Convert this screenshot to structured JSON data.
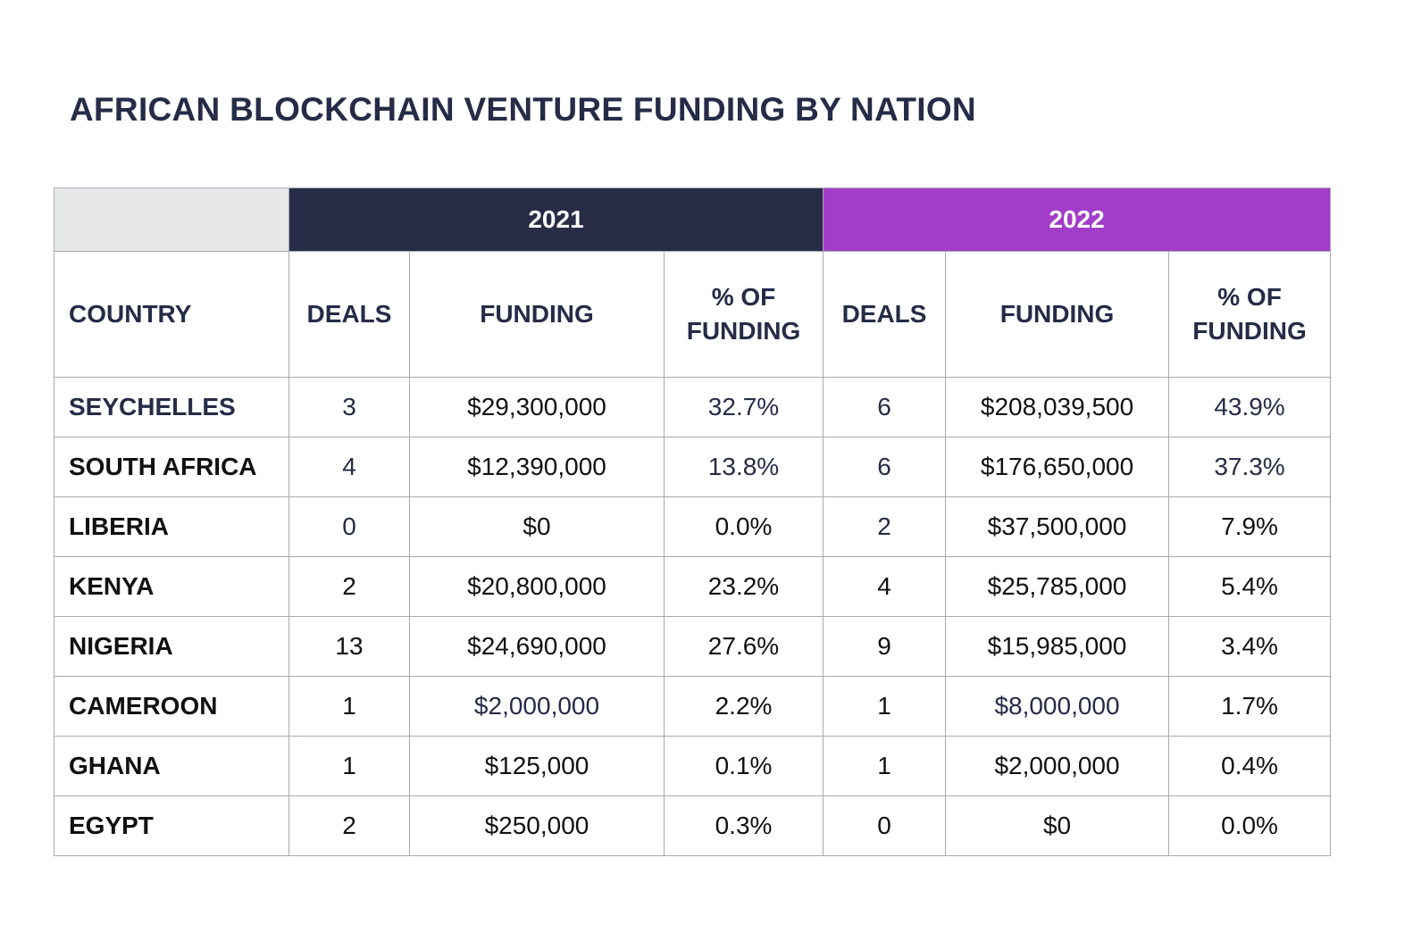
{
  "title": "AFRICAN BLOCKCHAIN VENTURE FUNDING BY NATION",
  "header": {
    "year_2021": "2021",
    "year_2022": "2022",
    "columns": [
      "COUNTRY",
      "DEALS",
      "FUNDING",
      "% OF FUNDING",
      "DEALS",
      "FUNDING",
      "% OF FUNDING"
    ]
  },
  "rows": [
    {
      "country": "SEYCHELLES",
      "deals_2021": "3",
      "funding_2021": "$29,300,000",
      "pct_2021": "32.7%",
      "deals_2022": "6",
      "funding_2022": "$208,039,500",
      "pct_2022": "43.9%"
    },
    {
      "country": "SOUTH AFRICA",
      "deals_2021": "4",
      "funding_2021": "$12,390,000",
      "pct_2021": "13.8%",
      "deals_2022": "6",
      "funding_2022": "$176,650,000",
      "pct_2022": "37.3%"
    },
    {
      "country": "LIBERIA",
      "deals_2021": "0",
      "funding_2021": "$0",
      "pct_2021": "0.0%",
      "deals_2022": "2",
      "funding_2022": "$37,500,000",
      "pct_2022": "7.9%"
    },
    {
      "country": "KENYA",
      "deals_2021": "2",
      "funding_2021": "$20,800,000",
      "pct_2021": "23.2%",
      "deals_2022": "4",
      "funding_2022": "$25,785,000",
      "pct_2022": "5.4%"
    },
    {
      "country": "NIGERIA",
      "deals_2021": "13",
      "funding_2021": "$24,690,000",
      "pct_2021": "27.6%",
      "deals_2022": "9",
      "funding_2022": "$15,985,000",
      "pct_2022": "3.4%"
    },
    {
      "country": "CAMEROON",
      "deals_2021": "1",
      "funding_2021": "$2,000,000",
      "pct_2021": "2.2%",
      "deals_2022": "1",
      "funding_2022": "$8,000,000",
      "pct_2022": "1.7%"
    },
    {
      "country": "GHANA",
      "deals_2021": "1",
      "funding_2021": "$125,000",
      "pct_2021": "0.1%",
      "deals_2022": "1",
      "funding_2022": "$2,000,000",
      "pct_2022": "0.4%"
    },
    {
      "country": "EGYPT",
      "deals_2021": "2",
      "funding_2021": "$250,000",
      "pct_2021": "0.3%",
      "deals_2022": "0",
      "funding_2022": "$0",
      "pct_2022": "0.0%"
    }
  ],
  "colors": {
    "title": "#262b47",
    "year_2021_bg": "#282c46",
    "year_2022_bg": "#a23cc9",
    "corner_bg": "#e6e7e9",
    "border": "#a9a9b6"
  },
  "chart_data": {
    "type": "table",
    "title": "AFRICAN BLOCKCHAIN VENTURE FUNDING BY NATION",
    "column_groups": [
      {
        "name": "2021",
        "columns": [
          "DEALS",
          "FUNDING",
          "% OF FUNDING"
        ]
      },
      {
        "name": "2022",
        "columns": [
          "DEALS",
          "FUNDING",
          "% OF FUNDING"
        ]
      }
    ],
    "columns": [
      "COUNTRY",
      "DEALS",
      "FUNDING",
      "% OF FUNDING",
      "DEALS",
      "FUNDING",
      "% OF FUNDING"
    ],
    "rows": [
      [
        "SEYCHELLES",
        3,
        29300000,
        32.7,
        6,
        208039500,
        43.9
      ],
      [
        "SOUTH AFRICA",
        4,
        12390000,
        13.8,
        6,
        176650000,
        37.3
      ],
      [
        "LIBERIA",
        0,
        0,
        0.0,
        2,
        37500000,
        7.9
      ],
      [
        "KENYA",
        2,
        20800000,
        23.2,
        4,
        25785000,
        5.4
      ],
      [
        "NIGERIA",
        13,
        24690000,
        27.6,
        9,
        15985000,
        3.4
      ],
      [
        "CAMEROON",
        1,
        2000000,
        2.2,
        1,
        8000000,
        1.7
      ],
      [
        "GHANA",
        1,
        125000,
        0.1,
        1,
        2000000,
        0.4
      ],
      [
        "EGYPT",
        2,
        250000,
        0.3,
        0,
        0,
        0.0
      ]
    ]
  }
}
